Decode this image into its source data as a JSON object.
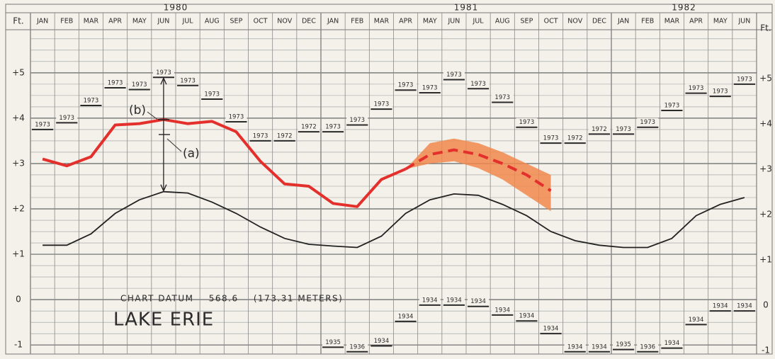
{
  "chart_data": {
    "type": "lake-level",
    "y_label": "Ft.",
    "years": [
      "1980",
      "1981",
      "1982"
    ],
    "categories": [
      "JAN",
      "FEB",
      "MAR",
      "APR",
      "MAY",
      "JUN",
      "JUL",
      "AUG",
      "SEP",
      "OCT",
      "NOV",
      "DEC",
      "JAN",
      "FEB",
      "MAR",
      "APR",
      "MAY",
      "JUN",
      "JUL",
      "AUG",
      "SEP",
      "OCT",
      "NOV",
      "DEC",
      "JAN",
      "FEB",
      "MAR",
      "APR",
      "MAY",
      "JUN"
    ],
    "ylim": [
      -1.2,
      5.95
    ],
    "yticks": [
      {
        "value": -1,
        "label": "-1"
      },
      0,
      {
        "value": 1,
        "label": "+1"
      },
      {
        "value": 2,
        "label": "+2"
      },
      {
        "value": 3,
        "label": "+3"
      },
      {
        "value": 4,
        "label": "+4"
      },
      {
        "value": 5,
        "label": "+5"
      }
    ],
    "grid": true,
    "grid_minor_step": 0.25,
    "record_high": {
      "color": "#2a2a2a",
      "values": [
        3.75,
        3.9,
        4.28,
        4.67,
        4.63,
        4.9,
        4.72,
        4.42,
        3.92,
        3.5,
        3.5,
        3.7,
        3.7,
        3.85,
        4.2,
        4.62,
        4.56,
        4.85,
        4.65,
        4.35,
        3.8,
        3.45,
        3.45,
        3.65,
        3.65,
        3.8,
        4.17,
        4.55,
        4.48,
        4.75
      ],
      "years": [
        "1973",
        "1973",
        "1973",
        "1973",
        "1973",
        "1973",
        "1973",
        "1973",
        "1973",
        "1973",
        "1972",
        "1972",
        "1973",
        "1973",
        "1973",
        "1973",
        "1973",
        "1973",
        "1973",
        "1973",
        "1973",
        "1973",
        "1972",
        "1972",
        "1973",
        "1973",
        "1973",
        "1973",
        "1973",
        "1973"
      ]
    },
    "record_low": {
      "color": "#2a2a2a",
      "values": [
        null,
        null,
        null,
        null,
        null,
        null,
        null,
        null,
        null,
        null,
        null,
        null,
        -1.05,
        -1.15,
        -1.02,
        -0.48,
        -0.12,
        -0.12,
        -0.15,
        -0.34,
        -0.47,
        -0.75,
        -1.15,
        -1.15,
        -1.1,
        -1.15,
        -1.07,
        -0.55,
        -0.25,
        -0.25
      ],
      "years": [
        null,
        null,
        null,
        null,
        null,
        null,
        null,
        null,
        null,
        null,
        null,
        null,
        "1935",
        "1936",
        "1934",
        "1934",
        "1934",
        "1934",
        "1934",
        "1934",
        "1934",
        "1934",
        "1934",
        "1934",
        "1935",
        "1936",
        "1934",
        "1934",
        "1934",
        "1934"
      ]
    },
    "recorded": {
      "color": "#e4302c",
      "values": [
        3.1,
        2.95,
        3.15,
        3.85,
        3.88,
        3.97,
        3.88,
        3.93,
        3.7,
        3.05,
        2.55,
        2.5,
        2.12,
        2.05,
        2.65,
        2.88,
        null,
        null,
        null,
        null,
        null,
        null,
        null,
        null,
        null,
        null,
        null,
        null,
        null,
        null
      ]
    },
    "forecast": {
      "color": "#e4302c",
      "band_color": "#f0884e",
      "values": [
        null,
        null,
        null,
        null,
        null,
        null,
        null,
        null,
        null,
        null,
        null,
        null,
        null,
        null,
        null,
        2.88,
        3.2,
        3.3,
        3.2,
        3.0,
        2.75,
        2.4,
        null,
        null,
        null,
        null,
        null,
        null,
        null,
        null
      ],
      "upper": [
        null,
        null,
        null,
        null,
        null,
        null,
        null,
        null,
        null,
        null,
        null,
        null,
        null,
        null,
        null,
        2.88,
        3.45,
        3.55,
        3.45,
        3.25,
        3.0,
        2.75,
        null,
        null,
        null,
        null,
        null,
        null,
        null,
        null
      ],
      "lower": [
        null,
        null,
        null,
        null,
        null,
        null,
        null,
        null,
        null,
        null,
        null,
        null,
        null,
        null,
        null,
        2.88,
        3.0,
        3.05,
        2.9,
        2.65,
        2.3,
        1.95,
        null,
        null,
        null,
        null,
        null,
        null,
        null,
        null
      ]
    },
    "average": {
      "color": "#222222",
      "values": [
        1.2,
        1.2,
        1.45,
        1.9,
        2.2,
        2.38,
        2.35,
        2.15,
        1.9,
        1.6,
        1.35,
        1.22,
        1.18,
        1.15,
        1.4,
        1.9,
        2.2,
        2.33,
        2.3,
        2.1,
        1.85,
        1.5,
        1.3,
        1.2,
        1.15,
        1.15,
        1.35,
        1.85,
        2.1,
        2.25
      ]
    },
    "annotations": {
      "a": "(a)",
      "b": "(b)",
      "datum": "CHART DATUM    568.6    (173.31 METERS)",
      "lake": "LAKE ERIE"
    }
  }
}
